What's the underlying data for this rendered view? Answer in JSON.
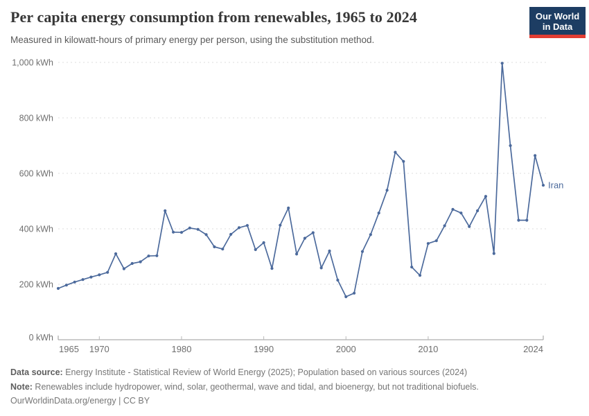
{
  "logo": {
    "line1": "Our World",
    "line2": "in Data"
  },
  "chart_data": {
    "type": "line",
    "title": "Per capita energy consumption from renewables, 1965 to 2024",
    "subtitle": "Measured in kilowatt-hours of primary energy per person, using the substitution method.",
    "xlabel": "",
    "ylabel": "kWh",
    "xlim": [
      1965,
      2024
    ],
    "ylim": [
      0,
      1000
    ],
    "grid": "horizontal-dashed",
    "legend_position": "end-of-line",
    "xticks": [
      {
        "value": 1965,
        "label": "1965"
      },
      {
        "value": 1970,
        "label": "1970"
      },
      {
        "value": 1980,
        "label": "1980"
      },
      {
        "value": 1990,
        "label": "1990"
      },
      {
        "value": 2000,
        "label": "2000"
      },
      {
        "value": 2010,
        "label": "2010"
      },
      {
        "value": 2024,
        "label": "2024"
      }
    ],
    "yticks": [
      {
        "value": 0,
        "label": "0 kWh"
      },
      {
        "value": 200,
        "label": "200 kWh"
      },
      {
        "value": 400,
        "label": "400 kWh"
      },
      {
        "value": 600,
        "label": "600 kWh"
      },
      {
        "value": 800,
        "label": "800 kWh"
      },
      {
        "value": 1000,
        "label": "1,000 kWh"
      }
    ],
    "x": [
      1965,
      1966,
      1967,
      1968,
      1969,
      1970,
      1971,
      1972,
      1973,
      1974,
      1975,
      1976,
      1977,
      1978,
      1979,
      1980,
      1981,
      1982,
      1983,
      1984,
      1985,
      1986,
      1987,
      1988,
      1989,
      1990,
      1991,
      1992,
      1993,
      1994,
      1995,
      1996,
      1997,
      1998,
      1999,
      2000,
      2001,
      2002,
      2003,
      2004,
      2005,
      2006,
      2007,
      2008,
      2009,
      2010,
      2011,
      2012,
      2013,
      2014,
      2015,
      2016,
      2017,
      2018,
      2019,
      2020,
      2021,
      2022,
      2023,
      2024
    ],
    "series": [
      {
        "name": "Iran",
        "values": [
          185,
          197,
          208,
          217,
          226,
          234,
          243,
          310,
          256,
          275,
          281,
          302,
          303,
          465,
          388,
          387,
          403,
          398,
          379,
          335,
          327,
          380,
          404,
          412,
          325,
          350,
          257,
          413,
          475,
          309,
          366,
          386,
          259,
          320,
          215,
          155,
          168,
          318,
          379,
          457,
          539,
          676,
          643,
          262,
          232,
          347,
          357,
          411,
          470,
          457,
          408,
          465,
          517,
          311,
          997,
          700,
          431,
          431,
          664,
          557
        ]
      }
    ]
  },
  "footer": {
    "datasource_label": "Data source:",
    "datasource_text": " Energy Institute - Statistical Review of World Energy (2025); Population based on various sources (2024)",
    "note_label": "Note:",
    "note_text": " Renewables include hydropower, wind, solar, geothermal, wave and tidal, and bioenergy, but not traditional biofuels.",
    "url": "OurWorldinData.org/energy",
    "separator": " | ",
    "license": "CC BY"
  },
  "colors": {
    "line": "#4c6a9c",
    "grid": "#dcdcdc",
    "axis": "#9a9a9a",
    "tick": "#b8b8b8",
    "tick_text": "#6e6e6e",
    "title": "#373737",
    "subtitle": "#5a5a5a",
    "footer": "#767676",
    "logo_bg": "#1d3d63",
    "logo_red": "#e23d33"
  }
}
